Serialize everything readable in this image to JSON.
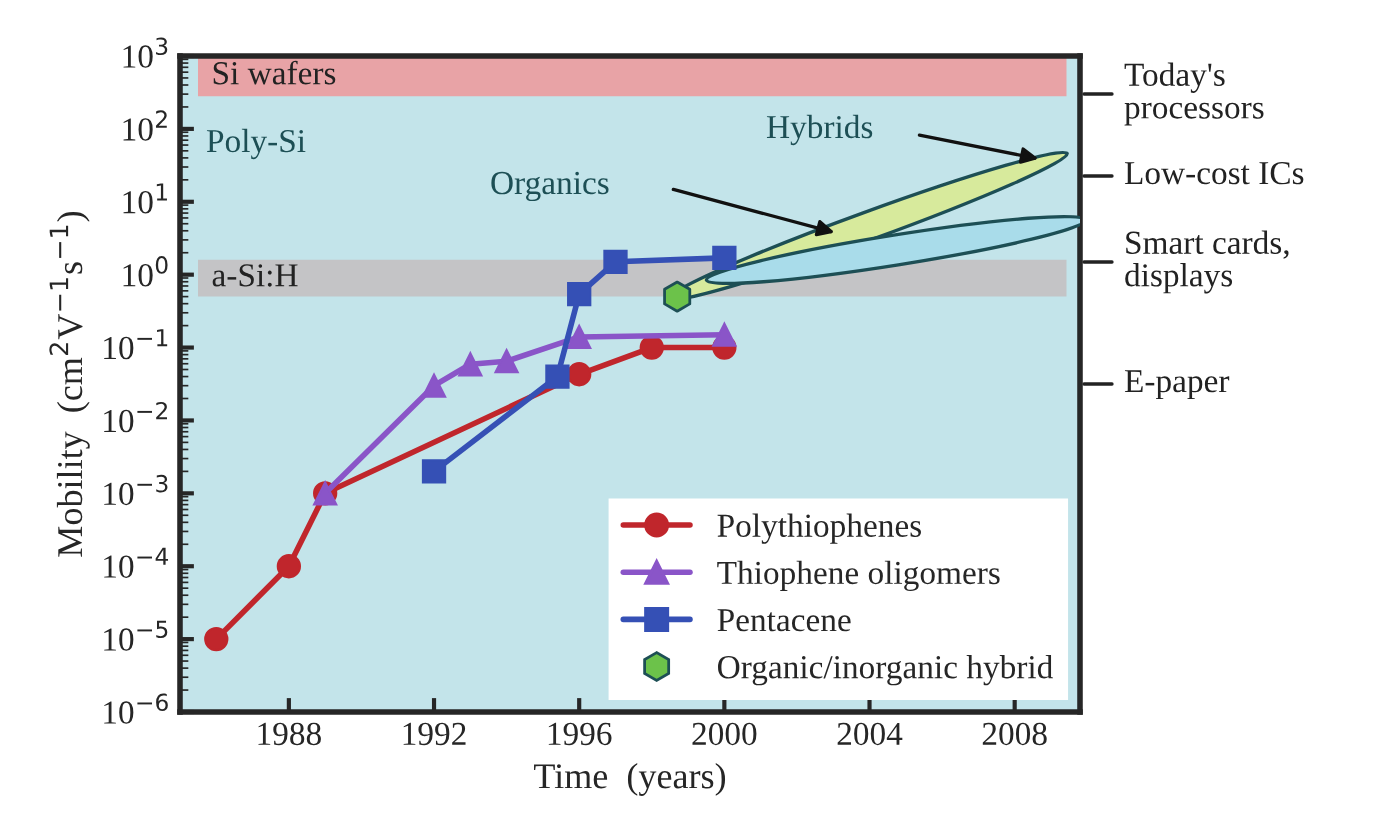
{
  "chart_data": {
    "type": "line",
    "xlabel": "Time  (years)",
    "ylabel": "Mobility  (cm$^{2}$V$^{−1}$s$^{−1}$)",
    "xlim": [
      1985,
      2009.8
    ],
    "ylim": [
      1e-06,
      1000
    ],
    "xticks": [
      1988,
      1992,
      1996,
      2000,
      2004,
      2008
    ],
    "yticks": [
      {
        "value": 1e-06,
        "label": "10$^{−6}$"
      },
      {
        "value": 1e-05,
        "label": "10$^{−5}$"
      },
      {
        "value": 0.0001,
        "label": "10$^{−4}$"
      },
      {
        "value": 0.001,
        "label": "10$^{−3}$"
      },
      {
        "value": 0.01,
        "label": "10$^{−2}$"
      },
      {
        "value": 0.1,
        "label": "10$^{−1}$"
      },
      {
        "value": 1,
        "label": "10$^{0}$"
      },
      {
        "value": 10,
        "label": "10$^{1}$"
      },
      {
        "value": 100,
        "label": "10$^{2}$"
      },
      {
        "value": 1000,
        "label": "10$^{3}$"
      }
    ],
    "log": true,
    "grid": false,
    "legend": "bottom right",
    "bands": [
      {
        "axis": "y",
        "from": 280,
        "to": 1000,
        "label": "Si wafers",
        "color": "#e8a3a6"
      },
      {
        "axis": "y",
        "from": 0.5,
        "to": 1.6,
        "label": "a-Si:H",
        "color": "#c4c4c6"
      }
    ],
    "series": [
      {
        "name": "Polythiophenes",
        "color": "#c0262c",
        "marker": "circle",
        "x": [
          1986,
          1988,
          1989,
          1996,
          1998,
          2000
        ],
        "values": [
          1e-05,
          0.0001,
          0.001,
          0.043,
          0.1,
          0.1
        ]
      },
      {
        "name": "Thiophene oligomers",
        "color": "#8a55c8",
        "marker": "triangle",
        "x": [
          1989,
          1992,
          1993,
          1994,
          1996,
          2000
        ],
        "values": [
          0.001,
          0.03,
          0.059,
          0.065,
          0.14,
          0.15
        ]
      },
      {
        "name": "Pentacene",
        "color": "#3550b5",
        "marker": "square",
        "x": [
          1992,
          1995.4,
          1996,
          1997,
          2000
        ],
        "values": [
          0.002,
          0.04,
          0.54,
          1.5,
          1.7
        ]
      },
      {
        "name": "Organic/inorganic hybrid",
        "type": "scatter",
        "color": "#6cc24a",
        "x": [
          1998.7
        ],
        "values": [
          0.5
        ]
      }
    ],
    "annotations": [
      "Poly-Si",
      "Organics",
      "Hybrids",
      "Today's\nprocessors",
      "Low-cost ICs",
      "Smart cards,\ndisplays",
      "E-paper"
    ]
  }
}
